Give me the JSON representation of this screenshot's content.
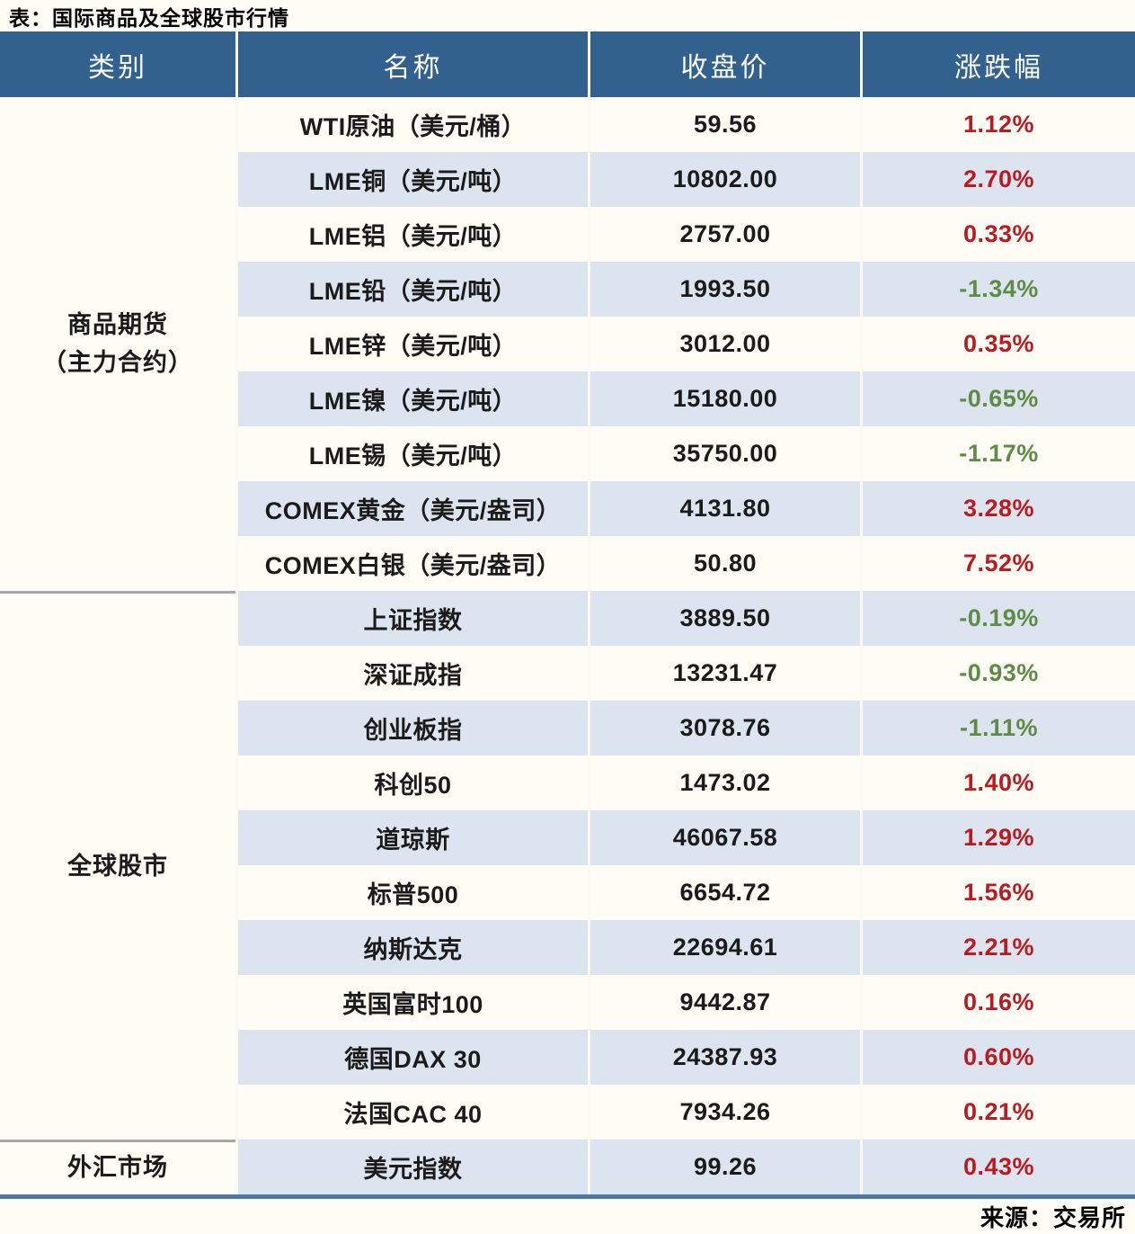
{
  "title": "表：国际商品及全球股市行情",
  "source_note": "来源：交易所",
  "columns": [
    "类别",
    "名称",
    "收盘价",
    "涨跌幅"
  ],
  "colors": {
    "header_bg": "#33618E",
    "header_fg": "#FAFBFA",
    "row_base": "#FDFCF5",
    "row_alt": "#DCE5EF",
    "up": "#BB1A21",
    "down": "#5E8B45",
    "bottom_border": "#4C77A4",
    "divider": "#A6A6A6"
  },
  "sections": [
    {
      "category_lines": [
        "商品期货",
        "（主力合约）"
      ],
      "rows": [
        {
          "name": "WTI原油（美元/桶）",
          "close": "59.56",
          "change": "1.12%",
          "direction": "up"
        },
        {
          "name": "LME铜（美元/吨）",
          "close": "10802.00",
          "change": "2.70%",
          "direction": "up"
        },
        {
          "name": "LME铝（美元/吨）",
          "close": "2757.00",
          "change": "0.33%",
          "direction": "up"
        },
        {
          "name": "LME铅（美元/吨）",
          "close": "1993.50",
          "change": "-1.34%",
          "direction": "down"
        },
        {
          "name": "LME锌（美元/吨）",
          "close": "3012.00",
          "change": "0.35%",
          "direction": "up"
        },
        {
          "name": "LME镍（美元/吨）",
          "close": "15180.00",
          "change": "-0.65%",
          "direction": "down"
        },
        {
          "name": "LME锡（美元/吨）",
          "close": "35750.00",
          "change": "-1.17%",
          "direction": "down"
        },
        {
          "name": "COMEX黄金（美元/盎司）",
          "close": "4131.80",
          "change": "3.28%",
          "direction": "up"
        },
        {
          "name": "COMEX白银（美元/盎司）",
          "close": "50.80",
          "change": "7.52%",
          "direction": "up"
        }
      ]
    },
    {
      "category_lines": [
        "全球股市"
      ],
      "rows": [
        {
          "name": "上证指数",
          "close": "3889.50",
          "change": "-0.19%",
          "direction": "down"
        },
        {
          "name": "深证成指",
          "close": "13231.47",
          "change": "-0.93%",
          "direction": "down"
        },
        {
          "name": "创业板指",
          "close": "3078.76",
          "change": "-1.11%",
          "direction": "down"
        },
        {
          "name": "科创50",
          "close": "1473.02",
          "change": "1.40%",
          "direction": "up"
        },
        {
          "name": "道琼斯",
          "close": "46067.58",
          "change": "1.29%",
          "direction": "up"
        },
        {
          "name": "标普500",
          "close": "6654.72",
          "change": "1.56%",
          "direction": "up"
        },
        {
          "name": "纳斯达克",
          "close": "22694.61",
          "change": "2.21%",
          "direction": "up"
        },
        {
          "name": "英国富时100",
          "close": "9442.87",
          "change": "0.16%",
          "direction": "up"
        },
        {
          "name": "德国DAX 30",
          "close": "24387.93",
          "change": "0.60%",
          "direction": "up"
        },
        {
          "name": "法国CAC 40",
          "close": "7934.26",
          "change": "0.21%",
          "direction": "up"
        }
      ]
    },
    {
      "category_lines": [
        "外汇市场"
      ],
      "rows": [
        {
          "name": "美元指数",
          "close": "99.26",
          "change": "0.43%",
          "direction": "up"
        }
      ]
    }
  ]
}
